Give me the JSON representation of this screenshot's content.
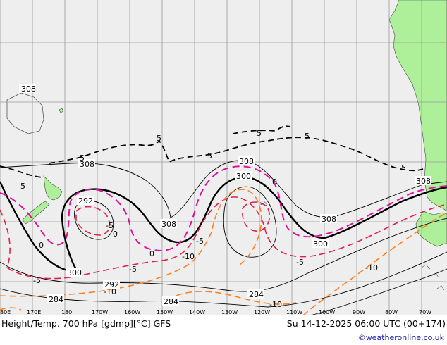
{
  "title": "Height/Temp. 700 hPa [gdmp][°C] GFS",
  "datetime": "Su 14-12-2025 06:00 UTC (00+174)",
  "credit": "©weatheronline.co.uk",
  "colors": {
    "ocean": "#eeeeee",
    "land": "#aef09a",
    "height_contour": "#000000",
    "temp_warm": "#e0204a",
    "temp_zero": "#e0109a",
    "temp_cold": "#ff8020"
  },
  "longitude_ticks": [
    "80E",
    "170E",
    "180",
    "170W",
    "160W",
    "150W",
    "140W",
    "130W",
    "120W",
    "110W",
    "100W",
    "90W",
    "80W",
    "70W"
  ],
  "height_labels": [
    "308",
    "308",
    "308",
    "308",
    "308",
    "308",
    "292",
    "300",
    "300",
    "300",
    "292",
    "284",
    "284"
  ],
  "temp_labels": [
    "5",
    "5",
    "5",
    "5",
    "5",
    "5",
    "0",
    "0",
    "0",
    "0",
    "-5",
    "-5",
    "-5",
    "-5",
    "-5",
    "-10",
    "-10",
    "-10",
    "-10",
    "-5",
    "5"
  ]
}
